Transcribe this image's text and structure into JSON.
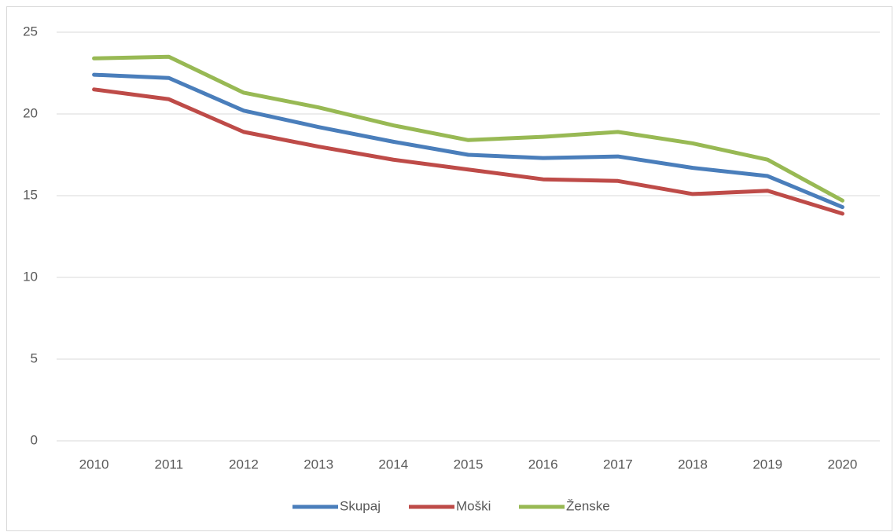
{
  "chart_data": {
    "type": "line",
    "categories": [
      "2010",
      "2011",
      "2012",
      "2013",
      "2014",
      "2015",
      "2016",
      "2017",
      "2018",
      "2019",
      "2020"
    ],
    "series": [
      {
        "name": "Skupaj",
        "color": "#4a7ebb",
        "values": [
          22.4,
          22.2,
          20.2,
          19.2,
          18.3,
          17.5,
          17.3,
          17.4,
          16.7,
          16.2,
          14.3
        ]
      },
      {
        "name": "Moški",
        "color": "#be4b48",
        "values": [
          21.5,
          20.9,
          18.9,
          18.0,
          17.2,
          16.6,
          16.0,
          15.9,
          15.1,
          15.3,
          13.9
        ]
      },
      {
        "name": "Ženske",
        "color": "#98b954",
        "values": [
          23.4,
          23.5,
          21.3,
          20.4,
          19.3,
          18.4,
          18.6,
          18.9,
          18.2,
          17.2,
          14.7
        ]
      }
    ],
    "ylim": [
      0,
      25
    ],
    "yticks": [
      0,
      5,
      10,
      15,
      20,
      25
    ],
    "grid": true,
    "legend": "bottom"
  }
}
